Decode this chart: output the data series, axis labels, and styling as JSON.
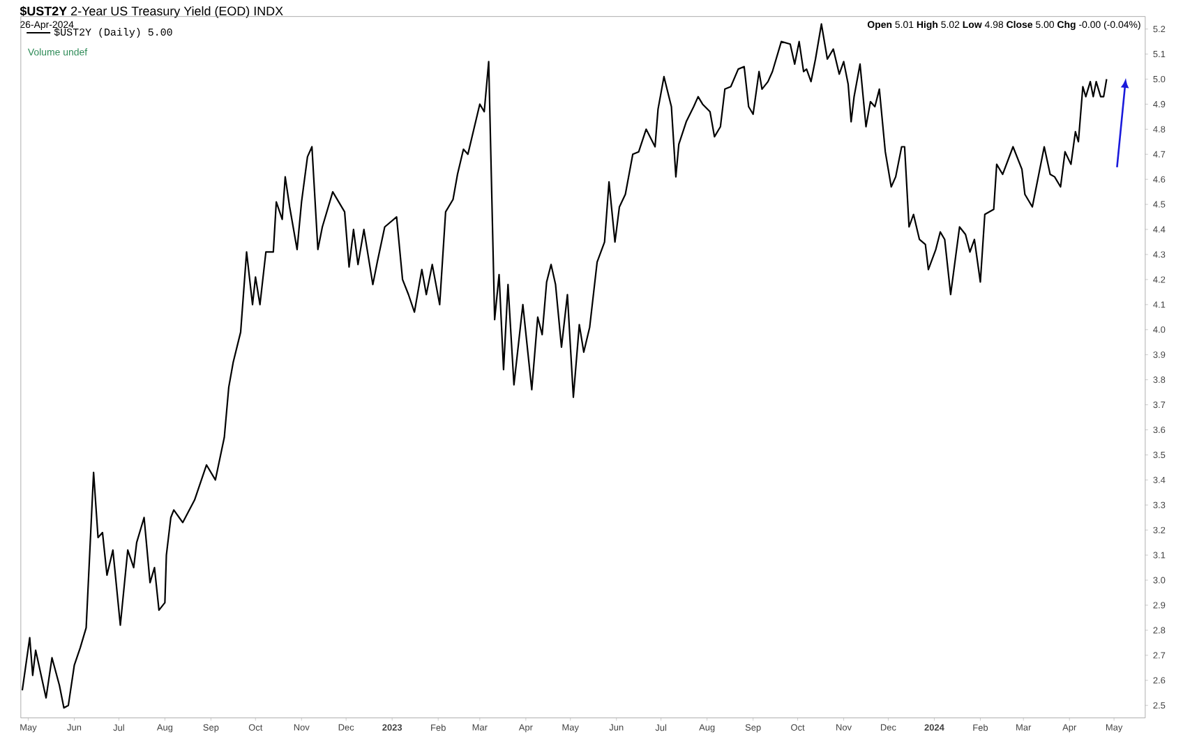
{
  "chart_data": {
    "type": "line",
    "title": "**$UST2Y** 2-Year US Treasury Yield (EOD) INDX",
    "subtitle": "26-Apr-2024",
    "annotations": [
      "**Open** 5.01 **High** 5.02 **Low** 4.98 **Close** 5.00 **Chg** -0.00 (-0.04%)",
      "Volume undef"
    ],
    "series": [
      {
        "name": "$UST2Y (Daily) 5.00",
        "color": "#000000",
        "x": [
          "2022-04-27",
          "2022-05-02",
          "2022-05-04",
          "2022-05-06",
          "2022-05-13",
          "2022-05-17",
          "2022-05-22",
          "2022-05-25",
          "2022-05-28",
          "2022-06-01",
          "2022-06-05",
          "2022-06-09",
          "2022-06-14",
          "2022-06-17",
          "2022-06-20",
          "2022-06-23",
          "2022-06-27",
          "2022-07-02",
          "2022-07-07",
          "2022-07-11",
          "2022-07-13",
          "2022-07-18",
          "2022-07-22",
          "2022-07-25",
          "2022-07-28",
          "2022-08-01",
          "2022-08-02",
          "2022-08-05",
          "2022-08-07",
          "2022-08-13",
          "2022-08-21",
          "2022-08-29",
          "2022-09-04",
          "2022-09-10",
          "2022-09-13",
          "2022-09-16",
          "2022-09-21",
          "2022-09-25",
          "2022-09-29",
          "2022-10-01",
          "2022-10-04",
          "2022-10-08",
          "2022-10-13",
          "2022-10-15",
          "2022-10-19",
          "2022-10-21",
          "2022-10-24",
          "2022-10-29",
          "2022-11-01",
          "2022-11-05",
          "2022-11-08",
          "2022-11-12",
          "2022-11-15",
          "2022-11-22",
          "2022-11-30",
          "2022-12-03",
          "2022-12-06",
          "2022-12-09",
          "2022-12-13",
          "2022-12-19",
          "2022-12-22",
          "2022-12-27",
          "2023-01-04",
          "2023-01-08",
          "2023-01-12",
          "2023-01-16",
          "2023-01-21",
          "2023-01-24",
          "2023-01-28",
          "2023-02-02",
          "2023-02-06",
          "2023-02-11",
          "2023-02-14",
          "2023-02-18",
          "2023-02-21",
          "2023-02-25",
          "2023-03-01",
          "2023-03-04",
          "2023-03-07",
          "2023-03-11",
          "2023-03-14",
          "2023-03-17",
          "2023-03-20",
          "2023-03-24",
          "2023-03-30",
          "2023-04-05",
          "2023-04-09",
          "2023-04-12",
          "2023-04-15",
          "2023-04-18",
          "2023-04-21",
          "2023-04-25",
          "2023-04-29",
          "2023-05-03",
          "2023-05-07",
          "2023-05-10",
          "2023-05-14",
          "2023-05-19",
          "2023-05-24",
          "2023-05-27",
          "2023-05-31",
          "2023-06-03",
          "2023-06-07",
          "2023-06-12",
          "2023-06-16",
          "2023-06-21",
          "2023-06-27",
          "2023-06-29",
          "2023-07-03",
          "2023-07-08",
          "2023-07-11",
          "2023-07-13",
          "2023-07-18",
          "2023-07-23",
          "2023-07-26",
          "2023-07-29",
          "2023-08-03",
          "2023-08-06",
          "2023-08-10",
          "2023-08-13",
          "2023-08-17",
          "2023-08-22",
          "2023-08-26",
          "2023-08-29",
          "2023-09-01",
          "2023-09-05",
          "2023-09-07",
          "2023-09-11",
          "2023-09-14",
          "2023-09-20",
          "2023-09-26",
          "2023-09-29",
          "2023-10-02",
          "2023-10-05",
          "2023-10-07",
          "2023-10-10",
          "2023-10-13",
          "2023-10-17",
          "2023-10-21",
          "2023-10-25",
          "2023-10-29",
          "2023-11-01",
          "2023-11-04",
          "2023-11-06",
          "2023-11-08",
          "2023-11-12",
          "2023-11-16",
          "2023-11-19",
          "2023-11-22",
          "2023-11-25",
          "2023-11-29",
          "2023-12-03",
          "2023-12-06",
          "2023-12-10",
          "2023-12-12",
          "2023-12-15",
          "2023-12-18",
          "2023-12-22",
          "2023-12-26",
          "2023-12-28",
          "2024-01-02",
          "2024-01-05",
          "2024-01-08",
          "2024-01-12",
          "2024-01-18",
          "2024-01-22",
          "2024-01-25",
          "2024-01-28",
          "2024-02-01",
          "2024-02-04",
          "2024-02-10",
          "2024-02-12",
          "2024-02-16",
          "2024-02-23",
          "2024-02-29",
          "2024-03-02",
          "2024-03-07",
          "2024-03-11",
          "2024-03-15",
          "2024-03-19",
          "2024-03-22",
          "2024-03-26",
          "2024-03-29",
          "2024-04-02",
          "2024-04-05",
          "2024-04-07",
          "2024-04-10",
          "2024-04-12",
          "2024-04-15",
          "2024-04-17",
          "2024-04-19",
          "2024-04-22",
          "2024-04-24",
          "2024-04-26"
        ],
        "values": [
          2.56,
          2.77,
          2.62,
          2.72,
          2.53,
          2.69,
          2.58,
          2.49,
          2.5,
          2.66,
          2.73,
          2.81,
          3.43,
          3.17,
          3.19,
          3.02,
          3.12,
          2.82,
          3.12,
          3.05,
          3.15,
          3.25,
          2.99,
          3.05,
          2.88,
          2.91,
          3.1,
          3.25,
          3.28,
          3.23,
          3.32,
          3.46,
          3.4,
          3.57,
          3.77,
          3.87,
          3.99,
          4.31,
          4.1,
          4.21,
          4.1,
          4.31,
          4.31,
          4.51,
          4.44,
          4.61,
          4.49,
          4.32,
          4.51,
          4.69,
          4.73,
          4.32,
          4.41,
          4.55,
          4.47,
          4.25,
          4.4,
          4.26,
          4.4,
          4.18,
          4.27,
          4.41,
          4.45,
          4.2,
          4.14,
          4.07,
          4.24,
          4.14,
          4.26,
          4.1,
          4.47,
          4.52,
          4.62,
          4.72,
          4.7,
          4.8,
          4.9,
          4.87,
          5.07,
          4.04,
          4.22,
          3.84,
          4.18,
          3.78,
          4.1,
          3.76,
          4.05,
          3.98,
          4.19,
          4.26,
          4.18,
          3.93,
          4.14,
          3.73,
          4.02,
          3.91,
          4.01,
          4.27,
          4.35,
          4.59,
          4.35,
          4.49,
          4.54,
          4.7,
          4.71,
          4.8,
          4.73,
          4.88,
          5.01,
          4.89,
          4.61,
          4.74,
          4.83,
          4.89,
          4.93,
          4.9,
          4.87,
          4.77,
          4.81,
          4.96,
          4.97,
          5.04,
          5.05,
          4.89,
          4.86,
          5.03,
          4.96,
          4.99,
          5.03,
          5.15,
          5.14,
          5.06,
          5.15,
          5.03,
          5.04,
          4.99,
          5.08,
          5.22,
          5.08,
          5.12,
          5.02,
          5.07,
          4.98,
          4.83,
          4.93,
          5.06,
          4.81,
          4.91,
          4.89,
          4.96,
          4.71,
          4.57,
          4.61,
          4.73,
          4.73,
          4.41,
          4.46,
          4.36,
          4.34,
          4.24,
          4.32,
          4.39,
          4.36,
          4.14,
          4.41,
          4.38,
          4.31,
          4.36,
          4.19,
          4.46,
          4.48,
          4.66,
          4.62,
          4.73,
          4.64,
          4.54,
          4.49,
          4.61,
          4.73,
          4.62,
          4.61,
          4.57,
          4.71,
          4.66,
          4.79,
          4.75,
          4.97,
          4.93,
          4.99,
          4.93,
          4.99,
          4.93,
          4.93,
          5.0
        ]
      }
    ],
    "xlim": [
      "2022-04-26",
      "2024-05-22"
    ],
    "xticks": [
      {
        "value": "2022-05-01",
        "label": "May"
      },
      {
        "value": "2022-06-01",
        "label": "Jun"
      },
      {
        "value": "2022-07-01",
        "label": "Jul"
      },
      {
        "value": "2022-08-01",
        "label": "Aug"
      },
      {
        "value": "2022-09-01",
        "label": "Sep"
      },
      {
        "value": "2022-10-01",
        "label": "Oct"
      },
      {
        "value": "2022-11-01",
        "label": "Nov"
      },
      {
        "value": "2022-12-01",
        "label": "Dec"
      },
      {
        "value": "2023-01-01",
        "label": "2023"
      },
      {
        "value": "2023-02-01",
        "label": "Feb"
      },
      {
        "value": "2023-03-01",
        "label": "Mar"
      },
      {
        "value": "2023-04-01",
        "label": "Apr"
      },
      {
        "value": "2023-05-01",
        "label": "May"
      },
      {
        "value": "2023-06-01",
        "label": "Jun"
      },
      {
        "value": "2023-07-01",
        "label": "Jul"
      },
      {
        "value": "2023-08-01",
        "label": "Aug"
      },
      {
        "value": "2023-09-01",
        "label": "Sep"
      },
      {
        "value": "2023-10-01",
        "label": "Oct"
      },
      {
        "value": "2023-11-01",
        "label": "Nov"
      },
      {
        "value": "2023-12-01",
        "label": "Dec"
      },
      {
        "value": "2024-01-01",
        "label": "2024"
      },
      {
        "value": "2024-02-01",
        "label": "Feb"
      },
      {
        "value": "2024-03-01",
        "label": "Mar"
      },
      {
        "value": "2024-04-01",
        "label": "Apr"
      },
      {
        "value": "2024-05-01",
        "label": "May"
      }
    ],
    "ylim": [
      2.45,
      5.25
    ],
    "yticks": [
      2.5,
      2.6,
      2.7,
      2.8,
      2.9,
      {
        "value": 3.0,
        "label": "3.0"
      },
      3.1,
      3.2,
      3.3,
      3.4,
      3.5,
      3.6,
      3.7,
      3.8,
      3.9,
      {
        "value": 4.0,
        "label": "4.0"
      },
      4.1,
      4.2,
      4.3,
      4.4,
      4.5,
      4.6,
      4.7,
      4.8,
      4.9,
      {
        "value": 5.0,
        "label": "5.0"
      },
      5.1,
      5.2
    ],
    "legend": "top left",
    "marker": "none",
    "line_style": "solid"
  }
}
